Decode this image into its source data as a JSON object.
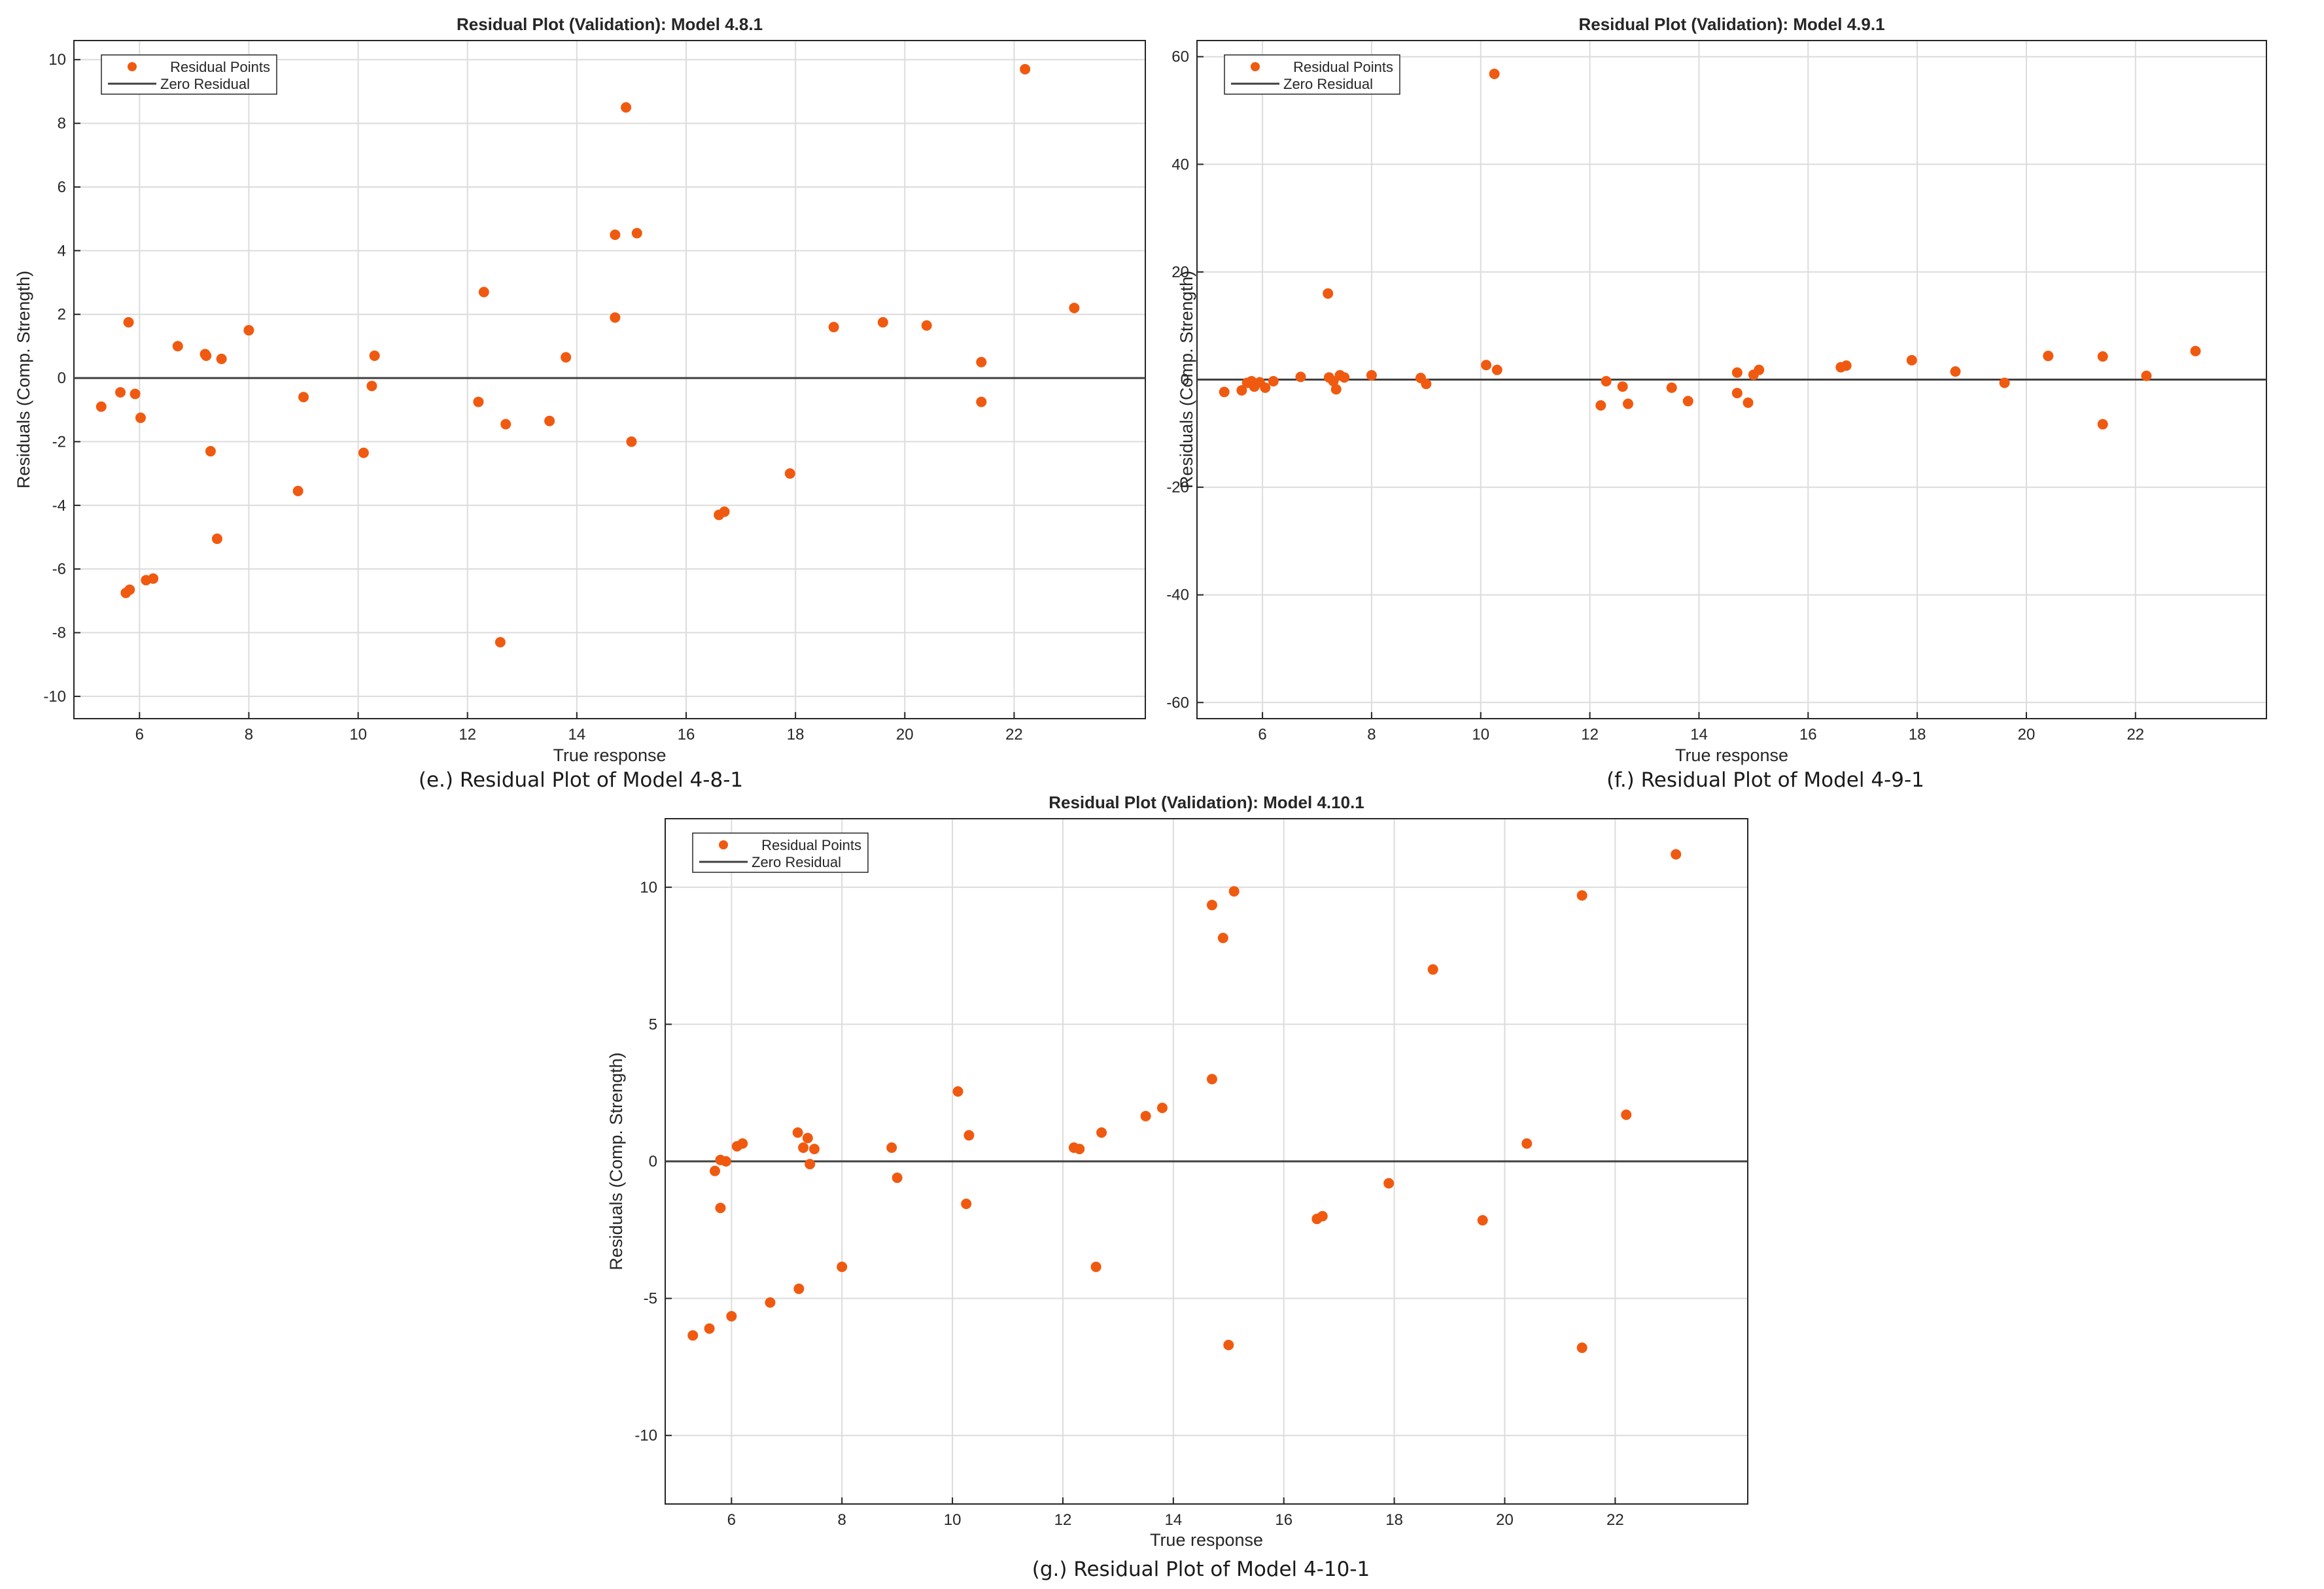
{
  "chart_data": [
    {
      "type": "scatter",
      "title": "Residual Plot (Validation): Model 4.8.1",
      "xlabel": "True response",
      "ylabel": "Residuals (Comp. Strength)",
      "caption": "(e.) Residual Plot of Model 4-8-1",
      "xlim": [
        4.8,
        24.4
      ],
      "ylim": [
        -10.7,
        10.6
      ],
      "xticks": [
        6,
        8,
        10,
        12,
        14,
        16,
        18,
        20,
        22
      ],
      "xticklabels": [
        "6",
        "8",
        "10",
        "12",
        "14",
        "16",
        "18",
        "20",
        "22"
      ],
      "yticks": [
        -10,
        -8,
        -6,
        -4,
        -2,
        0,
        2,
        4,
        6,
        8,
        10
      ],
      "yticklabels": [
        "-10",
        "-8",
        "-6",
        "-4",
        "-2",
        "0",
        "2",
        "4",
        "6",
        "8",
        "10"
      ],
      "grid": true,
      "legend": {
        "position": "top-left",
        "entries": [
          "Residual Points",
          "Zero Residual"
        ]
      },
      "series": [
        {
          "name": "Residual Points",
          "color": "#f05a10",
          "points": [
            [
              5.3,
              -0.9
            ],
            [
              5.65,
              -0.45
            ],
            [
              5.75,
              -6.75
            ],
            [
              5.82,
              -6.65
            ],
            [
              5.8,
              1.75
            ],
            [
              5.92,
              -0.5
            ],
            [
              6.02,
              -1.25
            ],
            [
              6.12,
              -6.35
            ],
            [
              6.25,
              -6.3
            ],
            [
              6.7,
              1.0
            ],
            [
              7.2,
              0.75
            ],
            [
              7.22,
              0.7
            ],
            [
              7.3,
              -2.3
            ],
            [
              7.42,
              -5.05
            ],
            [
              7.5,
              0.6
            ],
            [
              8.0,
              1.5
            ],
            [
              8.9,
              -3.55
            ],
            [
              9.0,
              -0.6
            ],
            [
              10.1,
              -2.35
            ],
            [
              10.25,
              -0.25
            ],
            [
              10.3,
              0.7
            ],
            [
              12.2,
              -0.75
            ],
            [
              12.3,
              2.7
            ],
            [
              12.6,
              -8.3
            ],
            [
              12.7,
              -1.45
            ],
            [
              13.5,
              -1.35
            ],
            [
              13.8,
              0.65
            ],
            [
              14.7,
              4.5
            ],
            [
              14.7,
              1.9
            ],
            [
              14.9,
              8.5
            ],
            [
              15.0,
              -2.0
            ],
            [
              15.1,
              4.55
            ],
            [
              16.6,
              -4.3
            ],
            [
              16.7,
              -4.2
            ],
            [
              17.9,
              -3.0
            ],
            [
              18.7,
              1.6
            ],
            [
              19.6,
              1.75
            ],
            [
              20.4,
              1.65
            ],
            [
              21.4,
              0.5
            ],
            [
              21.4,
              -0.75
            ],
            [
              22.2,
              9.7
            ],
            [
              23.1,
              2.2
            ]
          ]
        },
        {
          "name": "Zero Residual",
          "color": "#404040",
          "y": 0
        }
      ]
    },
    {
      "type": "scatter",
      "title": "Residual Plot (Validation): Model 4.9.1",
      "xlabel": "True response",
      "ylabel": "Residuals (Comp. Strength)",
      "caption": "(f.) Residual Plot of Model 4-9-1",
      "xlim": [
        4.8,
        24.4
      ],
      "ylim": [
        -63,
        63
      ],
      "xticks": [
        6,
        8,
        10,
        12,
        14,
        16,
        18,
        20,
        22
      ],
      "xticklabels": [
        "6",
        "8",
        "10",
        "12",
        "14",
        "16",
        "18",
        "20",
        "22"
      ],
      "yticks": [
        -60,
        -40,
        -20,
        0,
        20,
        40,
        60
      ],
      "yticklabels": [
        "-60",
        "-40",
        "-20",
        "0",
        "20",
        "40",
        "60"
      ],
      "grid": true,
      "legend": {
        "position": "top-left",
        "entries": [
          "Residual Points",
          "Zero Residual"
        ]
      },
      "series": [
        {
          "name": "Residual Points",
          "color": "#f05a10",
          "points": [
            [
              5.3,
              -2.3
            ],
            [
              5.62,
              -2.0
            ],
            [
              5.72,
              -0.6
            ],
            [
              5.8,
              -0.3
            ],
            [
              5.85,
              -1.3
            ],
            [
              5.95,
              -0.5
            ],
            [
              6.05,
              -1.5
            ],
            [
              6.2,
              -0.3
            ],
            [
              6.7,
              0.5
            ],
            [
              7.2,
              16.0
            ],
            [
              7.22,
              0.4
            ],
            [
              7.3,
              -0.3
            ],
            [
              7.35,
              -1.8
            ],
            [
              7.42,
              0.8
            ],
            [
              7.5,
              0.4
            ],
            [
              8.0,
              0.8
            ],
            [
              8.9,
              0.3
            ],
            [
              9.0,
              -0.8
            ],
            [
              10.1,
              2.7
            ],
            [
              10.25,
              56.8
            ],
            [
              10.3,
              1.8
            ],
            [
              12.2,
              -4.8
            ],
            [
              12.3,
              -0.3
            ],
            [
              12.6,
              -1.3
            ],
            [
              12.7,
              -4.5
            ],
            [
              13.5,
              -1.5
            ],
            [
              13.8,
              -4.0
            ],
            [
              14.7,
              1.3
            ],
            [
              14.7,
              -2.5
            ],
            [
              14.9,
              -4.3
            ],
            [
              15.0,
              0.9
            ],
            [
              15.1,
              1.8
            ],
            [
              16.6,
              2.3
            ],
            [
              16.7,
              2.6
            ],
            [
              17.9,
              3.6
            ],
            [
              18.7,
              1.5
            ],
            [
              19.6,
              -0.6
            ],
            [
              20.4,
              4.4
            ],
            [
              21.4,
              4.3
            ],
            [
              21.4,
              -8.3
            ],
            [
              22.2,
              0.7
            ],
            [
              23.1,
              5.3
            ]
          ]
        },
        {
          "name": "Zero Residual",
          "color": "#404040",
          "y": 0
        }
      ]
    },
    {
      "type": "scatter",
      "title": "Residual Plot (Validation): Model 4.10.1",
      "xlabel": "True response",
      "ylabel": "Residuals (Comp. Strength)",
      "caption": "(g.) Residual Plot of Model 4-10-1",
      "xlim": [
        4.8,
        24.4
      ],
      "ylim": [
        -12.5,
        12.5
      ],
      "xticks": [
        6,
        8,
        10,
        12,
        14,
        16,
        18,
        20,
        22
      ],
      "xticklabels": [
        "6",
        "8",
        "10",
        "12",
        "14",
        "16",
        "18",
        "20",
        "22"
      ],
      "yticks": [
        -10,
        -5,
        0,
        5,
        10
      ],
      "yticklabels": [
        "-10",
        "-5",
        "0",
        "5",
        "10"
      ],
      "grid": true,
      "legend": {
        "position": "top-left",
        "entries": [
          "Residual Points",
          "Zero Residual"
        ]
      },
      "series": [
        {
          "name": "Residual Points",
          "color": "#f05a10",
          "points": [
            [
              5.3,
              -6.35
            ],
            [
              5.6,
              -6.1
            ],
            [
              5.7,
              -0.35
            ],
            [
              5.8,
              0.05
            ],
            [
              5.8,
              -1.7
            ],
            [
              5.9,
              0.0
            ],
            [
              6.0,
              -5.65
            ],
            [
              6.1,
              0.55
            ],
            [
              6.2,
              0.65
            ],
            [
              6.7,
              -5.15
            ],
            [
              7.2,
              1.05
            ],
            [
              7.22,
              -4.65
            ],
            [
              7.3,
              0.5
            ],
            [
              7.38,
              0.85
            ],
            [
              7.42,
              -0.1
            ],
            [
              7.5,
              0.45
            ],
            [
              8.0,
              -3.85
            ],
            [
              8.9,
              0.5
            ],
            [
              9.0,
              -0.6
            ],
            [
              10.1,
              2.55
            ],
            [
              10.25,
              -1.55
            ],
            [
              10.3,
              0.95
            ],
            [
              12.2,
              0.5
            ],
            [
              12.3,
              0.45
            ],
            [
              12.6,
              -3.85
            ],
            [
              12.7,
              1.05
            ],
            [
              13.5,
              1.65
            ],
            [
              13.8,
              1.95
            ],
            [
              14.7,
              9.35
            ],
            [
              14.7,
              3.0
            ],
            [
              14.9,
              8.15
            ],
            [
              15.0,
              -6.7
            ],
            [
              15.1,
              9.85
            ],
            [
              16.6,
              -2.1
            ],
            [
              16.7,
              -2.0
            ],
            [
              17.9,
              -0.8
            ],
            [
              18.7,
              7.0
            ],
            [
              19.6,
              -2.15
            ],
            [
              20.4,
              0.65
            ],
            [
              21.4,
              9.7
            ],
            [
              21.4,
              -6.8
            ],
            [
              22.2,
              1.7
            ],
            [
              23.1,
              11.2
            ]
          ]
        },
        {
          "name": "Zero Residual",
          "color": "#404040",
          "y": 0
        }
      ]
    }
  ]
}
